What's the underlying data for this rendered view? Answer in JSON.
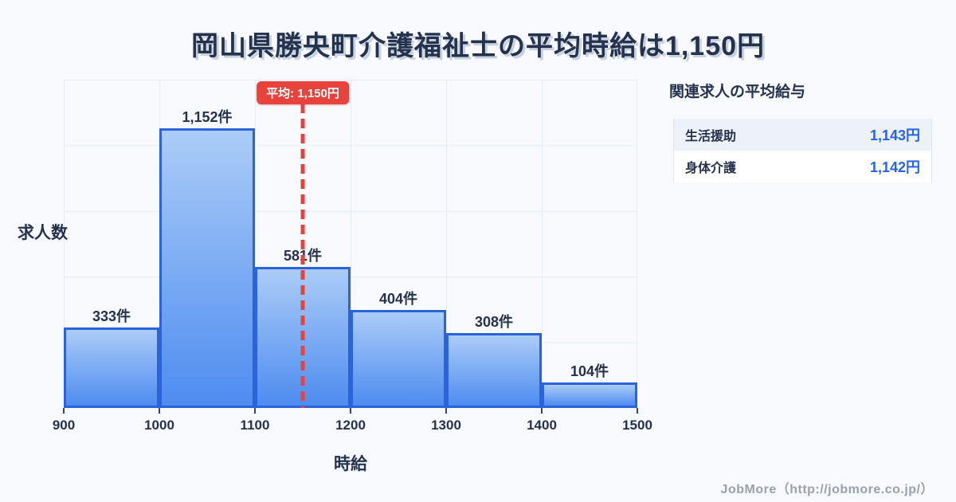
{
  "title": "岡山県勝央町介護福祉士の平均時給は1,150円",
  "chart_data": {
    "type": "bar",
    "subtype": "histogram",
    "categories": [
      "900-1000",
      "1000-1100",
      "1100-1200",
      "1200-1300",
      "1300-1400",
      "1400-1500"
    ],
    "values": [
      333,
      1152,
      581,
      404,
      308,
      104
    ],
    "bar_labels": [
      "333件",
      "1,152件",
      "581件",
      "404件",
      "308件",
      "104件"
    ],
    "x_ticks": [
      "900",
      "1000",
      "1100",
      "1200",
      "1300",
      "1400",
      "1500"
    ],
    "x_range": [
      900,
      1500
    ],
    "xlabel": "時給",
    "ylabel": "求人数",
    "grid": "on",
    "average_value": 1150,
    "average_label": "平均: 1,150円"
  },
  "side_panel": {
    "heading": "関連求人の平均給与",
    "rows": [
      {
        "label": "生活援助",
        "value": "1,143円"
      },
      {
        "label": "身体介護",
        "value": "1,142円"
      }
    ]
  },
  "footer": {
    "credit": "JobMore（http://jobmore.co.jp/）"
  },
  "colors": {
    "background": "#f7f9fc",
    "navy_text": "#25324e",
    "bar_gradient_top": "#abccf7",
    "bar_gradient_bottom": "#4e8cef",
    "bar_border": "#2a63da",
    "accent_red": "#e8423d",
    "value_blue": "#2563eb",
    "grid_line": "#e7ecf3",
    "footer_gray": "#9ba1aa"
  }
}
